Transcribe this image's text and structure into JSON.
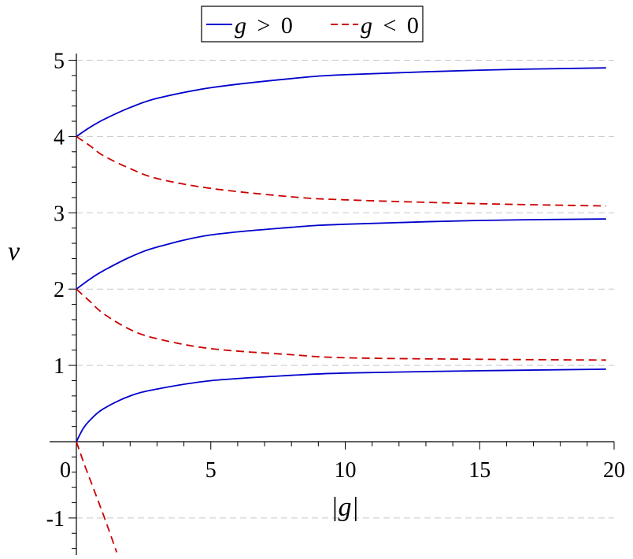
{
  "chart_data": {
    "type": "line",
    "xlabel": "|g|",
    "ylabel": "ν",
    "xlim": [
      0,
      20
    ],
    "ylim": [
      -1.5,
      5.2
    ],
    "x_ticks": [
      0,
      5,
      10,
      15,
      20
    ],
    "y_ticks": [
      -1,
      1,
      2,
      3,
      4,
      5
    ],
    "grid": "horizontal dashed",
    "legend": {
      "placement": "top-center",
      "entries": [
        {
          "label_var": "g",
          "label_rel": ">",
          "label_val": "0",
          "color": "#0000cc",
          "dash": "solid"
        },
        {
          "label_var": "g",
          "label_rel": "<",
          "label_val": "0",
          "color": "#cc0000",
          "dash": "dashed"
        }
      ]
    },
    "series": [
      {
        "name": "g > 0",
        "color": "#0000cc",
        "dash": "solid",
        "x": [
          0,
          0.5,
          1,
          2,
          3,
          5,
          8,
          10,
          15,
          19.7
        ],
        "y": [
          4.0,
          4.12,
          4.22,
          4.38,
          4.5,
          4.64,
          4.76,
          4.81,
          4.87,
          4.9
        ]
      },
      {
        "name": "g > 0",
        "color": "#0000cc",
        "dash": "solid",
        "x": [
          0,
          0.5,
          1,
          2,
          3,
          5,
          8,
          10,
          15,
          19.7
        ],
        "y": [
          2.0,
          2.13,
          2.24,
          2.42,
          2.55,
          2.71,
          2.81,
          2.85,
          2.9,
          2.92
        ]
      },
      {
        "name": "g > 0",
        "color": "#0000cc",
        "dash": "solid",
        "x": [
          0,
          0.25,
          0.5,
          1,
          2,
          3,
          5,
          8,
          10,
          15,
          19.7
        ],
        "y": [
          0.0,
          0.17,
          0.28,
          0.43,
          0.6,
          0.69,
          0.8,
          0.87,
          0.9,
          0.93,
          0.95
        ]
      },
      {
        "name": "g < 0",
        "color": "#cc0000",
        "dash": "dashed",
        "x": [
          0,
          0.5,
          1,
          2,
          3,
          5,
          8,
          10,
          15,
          19.7
        ],
        "y": [
          4.0,
          3.88,
          3.75,
          3.58,
          3.45,
          3.32,
          3.21,
          3.17,
          3.12,
          3.09
        ]
      },
      {
        "name": "g < 0",
        "color": "#cc0000",
        "dash": "dashed",
        "x": [
          0,
          0.5,
          1,
          2,
          3,
          5,
          8,
          10,
          15,
          19.7
        ],
        "y": [
          2.0,
          1.84,
          1.68,
          1.47,
          1.35,
          1.22,
          1.14,
          1.1,
          1.08,
          1.07
        ]
      },
      {
        "name": "g < 0",
        "color": "#cc0000",
        "dash": "dashed",
        "x": [
          0,
          0.3,
          0.6,
          0.9,
          1.2,
          1.5
        ],
        "y": [
          0.0,
          -0.3,
          -0.58,
          -0.86,
          -1.15,
          -1.45
        ]
      }
    ]
  }
}
